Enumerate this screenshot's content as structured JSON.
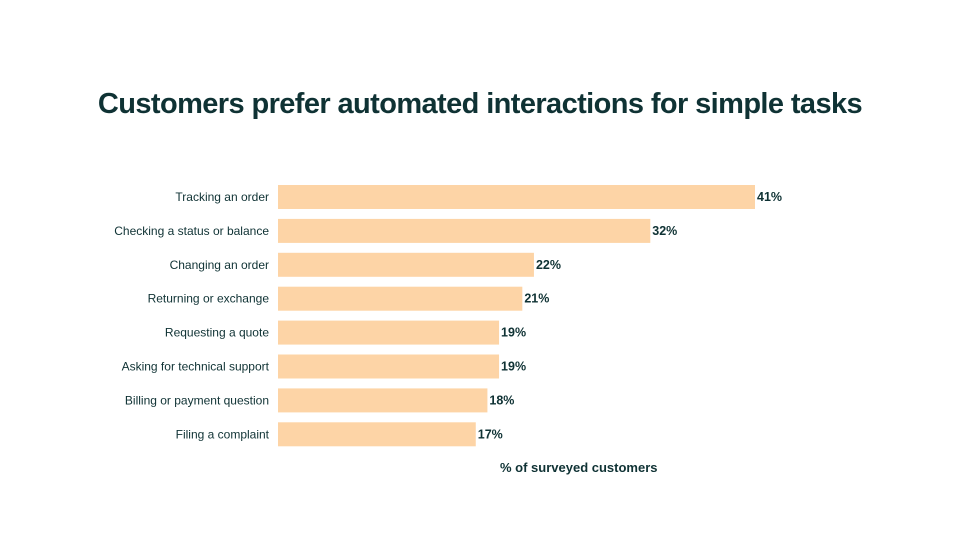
{
  "chart_data": {
    "type": "bar",
    "orientation": "horizontal",
    "title": "Customers prefer automated interactions for simple tasks",
    "xlabel": "% of surveyed customers",
    "ylabel": "",
    "categories": [
      "Tracking an order",
      "Checking a status or balance",
      "Changing an order",
      "Returning or exchange",
      "Requesting a quote",
      "Asking for technical support",
      "Billing or payment question",
      "Filing a complaint"
    ],
    "values": [
      41,
      32,
      22,
      21,
      19,
      19,
      18,
      17
    ],
    "value_labels": [
      "41%",
      "32%",
      "22%",
      "21%",
      "19%",
      "19%",
      "18%",
      "17%"
    ],
    "xlim": [
      0,
      41
    ],
    "grid": false,
    "bar_color": "#fdd4a6",
    "text_color": "#0f3234"
  }
}
